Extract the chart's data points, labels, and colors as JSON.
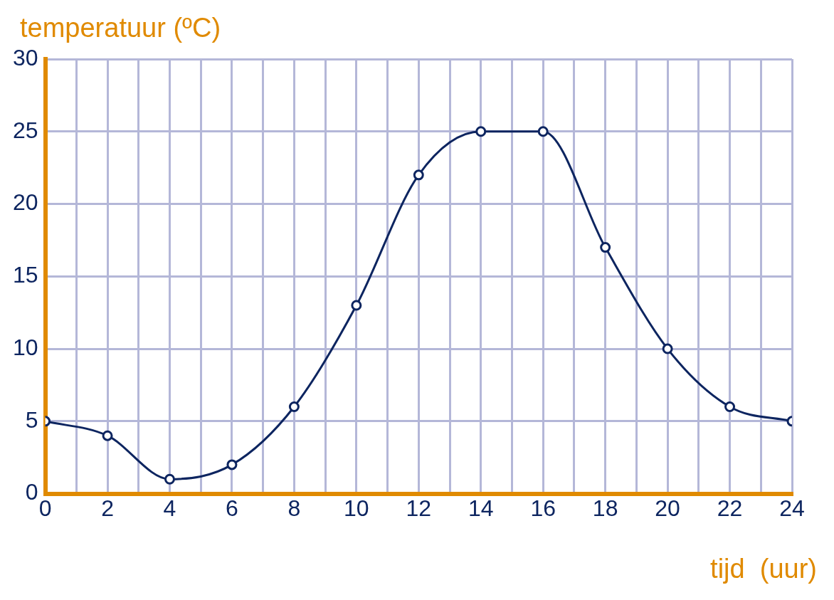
{
  "chart_data": {
    "type": "line",
    "xlabel": "tijd  (uur)",
    "ylabel": "temperatuur (ºC)",
    "x": [
      0,
      2,
      4,
      6,
      8,
      10,
      12,
      14,
      16,
      18,
      20,
      22,
      24
    ],
    "series": [
      {
        "color": "#0d2560",
        "values": [
          5,
          4,
          1,
          2,
          6,
          13,
          22,
          25,
          25,
          17,
          10,
          6,
          5
        ]
      }
    ],
    "xlim": [
      0,
      24
    ],
    "xticks": [
      0,
      {
        "value": 1,
        "label": null
      },
      2,
      {
        "value": 3,
        "label": null
      },
      4,
      {
        "value": 5,
        "label": null
      },
      6,
      {
        "value": 7,
        "label": null
      },
      8,
      {
        "value": 9,
        "label": null
      },
      10,
      {
        "value": 11,
        "label": null
      },
      12,
      {
        "value": 13,
        "label": null
      },
      14,
      {
        "value": 15,
        "label": null
      },
      16,
      {
        "value": 17,
        "label": null
      },
      18,
      {
        "value": 19,
        "label": null
      },
      20,
      {
        "value": 21,
        "label": null
      },
      22,
      {
        "value": 23,
        "label": null
      },
      24
    ],
    "ylim": [
      0,
      30
    ],
    "yticks": [
      0,
      5,
      10,
      15,
      20,
      25,
      30
    ],
    "grid": true,
    "legend": false,
    "marker": "circle",
    "line_style": "solid"
  }
}
